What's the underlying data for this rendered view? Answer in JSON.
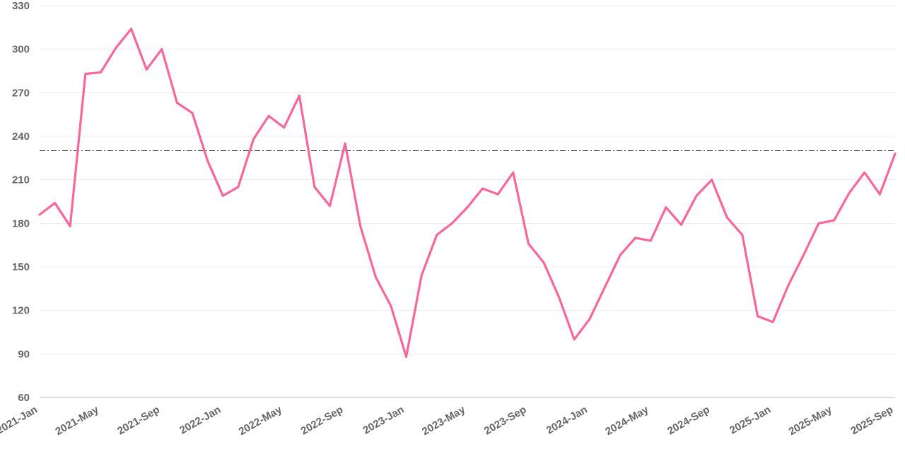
{
  "chart_data": {
    "type": "line",
    "title": "",
    "xlabel": "",
    "ylabel": "",
    "ylim": [
      60,
      330
    ],
    "yticks": [
      60,
      90,
      120,
      150,
      180,
      210,
      240,
      270,
      300,
      330
    ],
    "xtick_labels": [
      "2021-Jan",
      "2021-May",
      "2021-Sep",
      "2022-Jan",
      "2022-May",
      "2022-Sep",
      "2023-Jan",
      "2023-May",
      "2023-Sep",
      "2024-Jan",
      "2024-May",
      "2024-Sep",
      "2025-Jan",
      "2025-May",
      "2025-Sep"
    ],
    "x": [
      "2021-Jan",
      "2021-Feb",
      "2021-Mar",
      "2021-Apr",
      "2021-May",
      "2021-Jun",
      "2021-Jul",
      "2021-Aug",
      "2021-Sep",
      "2021-Oct",
      "2021-Nov",
      "2021-Dec",
      "2022-Jan",
      "2022-Feb",
      "2022-Mar",
      "2022-Apr",
      "2022-May",
      "2022-Jun",
      "2022-Jul",
      "2022-Aug",
      "2022-Sep",
      "2022-Oct",
      "2022-Nov",
      "2022-Dec",
      "2023-Jan",
      "2023-Feb",
      "2023-Mar",
      "2023-Apr",
      "2023-May",
      "2023-Jun",
      "2023-Jul",
      "2023-Aug",
      "2023-Sep",
      "2023-Oct",
      "2023-Nov",
      "2023-Dec",
      "2024-Jan",
      "2024-Feb",
      "2024-Mar",
      "2024-Apr",
      "2024-May",
      "2024-Jun",
      "2024-Jul",
      "2024-Aug",
      "2024-Sep",
      "2024-Oct",
      "2024-Nov",
      "2024-Dec",
      "2025-Jan",
      "2025-Feb",
      "2025-Mar",
      "2025-Apr",
      "2025-May",
      "2025-Jun",
      "2025-Jul",
      "2025-Aug",
      "2025-Sep"
    ],
    "series": [
      {
        "color": "#f7679c",
        "values": [
          186,
          194,
          178,
          283,
          284,
          301,
          314,
          286,
          300,
          263,
          256,
          223,
          199,
          205,
          238,
          254,
          246,
          268,
          205,
          192,
          235,
          178,
          143,
          123,
          88,
          144,
          172,
          180,
          191,
          204,
          200,
          215,
          166,
          153,
          129,
          100,
          114,
          136,
          158,
          170,
          168,
          191,
          179,
          199,
          210,
          184,
          172,
          116,
          112,
          137,
          158,
          180,
          182,
          201,
          215,
          200,
          228
        ]
      }
    ],
    "reference_line": {
      "y": 230,
      "style": "dash-dot",
      "color": "#222222"
    },
    "grid": true,
    "legend": "none"
  }
}
